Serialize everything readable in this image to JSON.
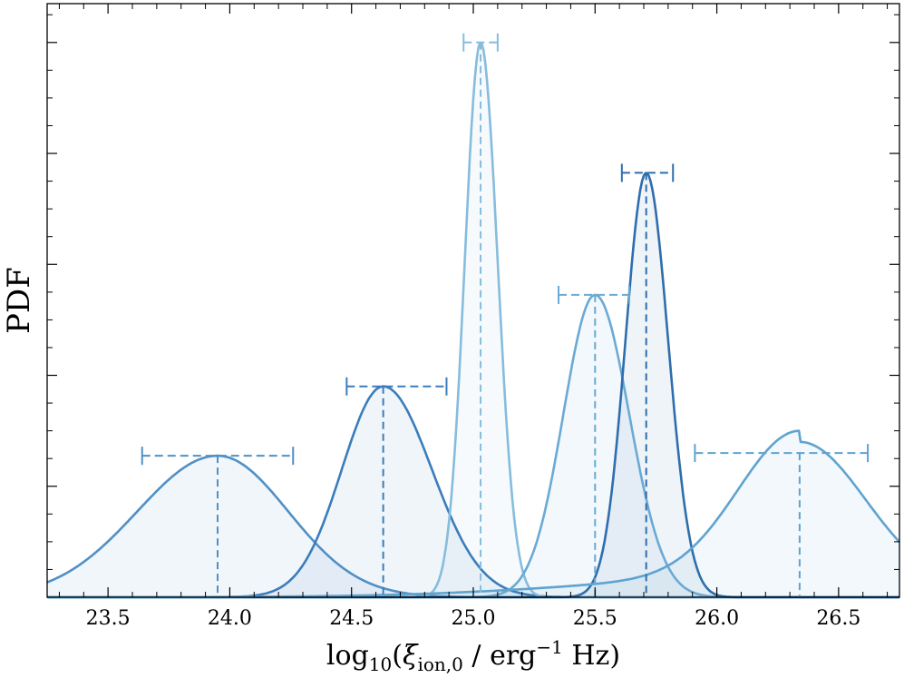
{
  "chart_data": {
    "type": "area",
    "title": "",
    "xlabel_parts": {
      "prefix": "log",
      "log_base": "10",
      "open": "(",
      "symbol": "ξ",
      "symbol_sub": "ion,0",
      "middle": " / erg",
      "exp": "−1",
      "suffix": " Hz)"
    },
    "ylabel": "PDF",
    "xlim": [
      23.25,
      26.75
    ],
    "ylim": [
      0,
      1.07
    ],
    "x_ticks": [
      "23.5",
      "24.0",
      "24.5",
      "25.0",
      "25.5",
      "26.0",
      "26.5"
    ],
    "y_tick_labels_shown": false,
    "legend": "none",
    "series": [
      {
        "peak": 23.95,
        "interval": [
          23.64,
          24.26
        ],
        "height": 0.255,
        "sigma_left": 0.33,
        "sigma_right": 0.29,
        "color": "#5090c6",
        "base_left": 0.0,
        "base_right": 0.0
      },
      {
        "peak": 24.63,
        "interval": [
          24.48,
          24.89
        ],
        "height": 0.38,
        "sigma_left": 0.17,
        "sigma_right": 0.2,
        "color": "#3b7dbb",
        "base_left": 0.0,
        "base_right": 0.0
      },
      {
        "peak": 25.03,
        "interval": [
          24.96,
          25.1
        ],
        "height": 1.0,
        "sigma_left": 0.065,
        "sigma_right": 0.07,
        "color": "#86bcdd",
        "base_left": 0.0,
        "base_right": 0.0
      },
      {
        "peak": 25.5,
        "interval": [
          25.35,
          25.64
        ],
        "height": 0.545,
        "sigma_left": 0.13,
        "sigma_right": 0.14,
        "color": "#6aaad4",
        "base_left": 0.0,
        "base_right": 0.0
      },
      {
        "peak": 25.71,
        "interval": [
          25.61,
          25.82
        ],
        "height": 0.765,
        "sigma_left": 0.085,
        "sigma_right": 0.09,
        "color": "#2e6eac",
        "base_left": 0.0,
        "base_right": 0.0
      },
      {
        "peak": 26.34,
        "interval": [
          25.91,
          26.62
        ],
        "height": 0.26,
        "sigma_left": 0.25,
        "sigma_right": 0.27,
        "color": "#5fa3d0",
        "base_left": 0.04,
        "base_right": 0.02
      }
    ]
  }
}
